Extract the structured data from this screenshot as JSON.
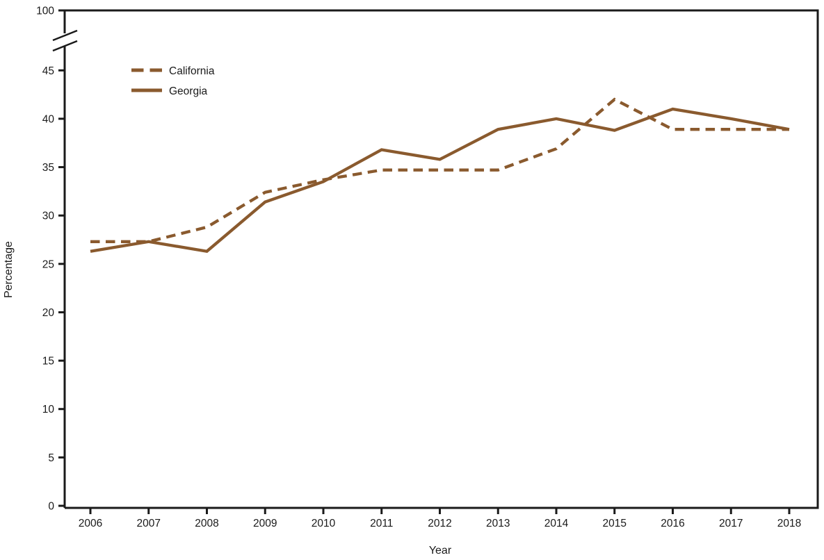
{
  "chart_data": {
    "type": "line",
    "title": "",
    "xlabel": "Year",
    "ylabel": "Percentage",
    "x": [
      2006,
      2007,
      2008,
      2009,
      2010,
      2011,
      2012,
      2013,
      2014,
      2015,
      2016,
      2017,
      2018
    ],
    "series": [
      {
        "name": "California",
        "style": "dashed",
        "values": [
          27.3,
          27.3,
          28.8,
          32.4,
          33.7,
          34.7,
          34.7,
          34.7,
          36.9,
          42.0,
          38.9,
          38.9,
          38.9
        ]
      },
      {
        "name": "Georgia",
        "style": "solid",
        "values": [
          26.3,
          27.3,
          26.3,
          31.4,
          33.5,
          36.8,
          35.8,
          38.9,
          40.0,
          38.8,
          41.0,
          40.0,
          38.9
        ]
      }
    ],
    "y_ticks_lower": [
      0,
      5,
      10,
      15,
      20,
      25,
      30,
      35,
      40,
      45
    ],
    "y_top_tick": 100,
    "axis_break": true,
    "ylim_lower": [
      0,
      47
    ],
    "grid": false,
    "legend_position": "upper-left-inside",
    "colors": {
      "line": "#8A5A2E",
      "axis": "#1A1A1A",
      "text": "#1A1A1A",
      "background": "#FFFFFF"
    }
  }
}
